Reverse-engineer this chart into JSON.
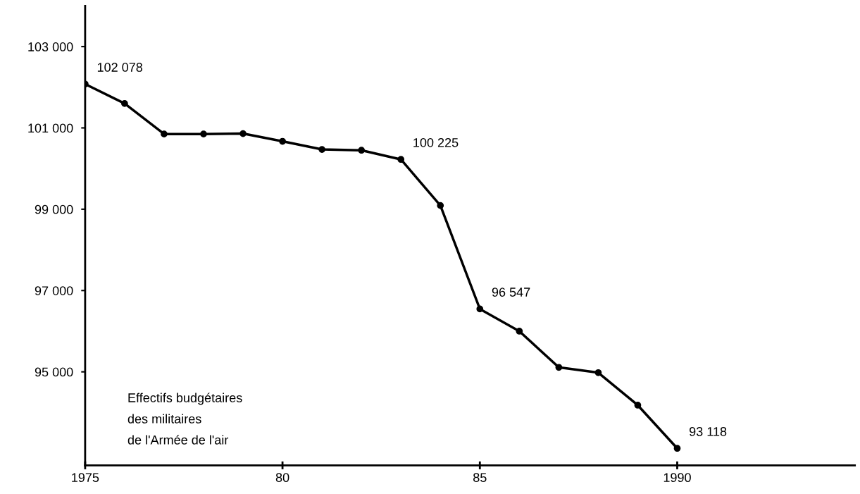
{
  "chart_data": {
    "type": "line",
    "x": [
      1975,
      1976,
      1977,
      1978,
      1979,
      1980,
      1981,
      1982,
      1983,
      1984,
      1985,
      1986,
      1987,
      1988,
      1989,
      1990
    ],
    "series": [
      {
        "color": "#000000",
        "values": [
          102078,
          101600,
          100850,
          100850,
          100860,
          100670,
          100470,
          100450,
          100225,
          99090,
          96547,
          96000,
          95110,
          94980,
          94180,
          93118
        ],
        "value_labels": [
          "102 078",
          null,
          null,
          null,
          null,
          null,
          null,
          null,
          "100 225",
          null,
          "96 547",
          null,
          null,
          null,
          null,
          "93 118"
        ]
      }
    ],
    "xlim": [
      1975,
      1994.5
    ],
    "xticks": [
      {
        "value": 1975,
        "label": "1975"
      },
      {
        "value": 1980,
        "label": "80"
      },
      {
        "value": 1985,
        "label": "85"
      },
      {
        "value": 1990,
        "label": "1990"
      }
    ],
    "ylim": [
      92700,
      104000
    ],
    "yticks": [
      {
        "value": 95000,
        "label": "95 000"
      },
      {
        "value": 97000,
        "label": "97 000"
      },
      {
        "value": 99000,
        "label": "99 000"
      },
      {
        "value": 101000,
        "label": "101 000"
      },
      {
        "value": 103000,
        "label": "103 000"
      }
    ],
    "annotations": [
      "Effectifs budgétaires\ndes militaires\nde l'Armée de l'air"
    ],
    "marker": "circle",
    "line_style": "solid",
    "grid": false,
    "legend": false
  }
}
